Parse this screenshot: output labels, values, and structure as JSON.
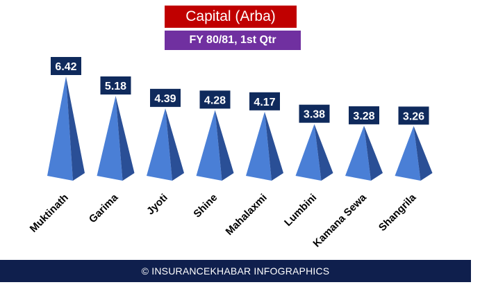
{
  "title": "Capital (Arba)",
  "subtitle": "FY 80/81, 1st Qtr",
  "footer": "© INSURANCEKHABAR INFOGRAPHICS",
  "colors": {
    "title_bg": "#c00000",
    "subtitle_bg": "#7030a0",
    "label_bg": "#0f2a5c",
    "pyramid_light": "#4a7fd6",
    "pyramid_dark": "#2a4f96",
    "footer_bg": "#0f1f4d"
  },
  "chart_data": {
    "type": "bar",
    "mark": "pyramid",
    "title": "Capital (Arba)",
    "subtitle": "FY 80/81, 1st Qtr",
    "categories": [
      "Muktinath",
      "Garima",
      "Jyoti",
      "Shine",
      "Mahalaxmi",
      "Lumbini",
      "Kamana Sewa",
      "Shangrila"
    ],
    "values": [
      6.42,
      5.18,
      4.39,
      4.28,
      4.17,
      3.38,
      3.28,
      3.26
    ],
    "value_labels": [
      "6.42",
      "5.18",
      "4.39",
      "4.28",
      "4.17",
      "3.38",
      "3.28",
      "3.26"
    ],
    "ylim": [
      0,
      6.42
    ],
    "grid": false,
    "legend": "none"
  }
}
